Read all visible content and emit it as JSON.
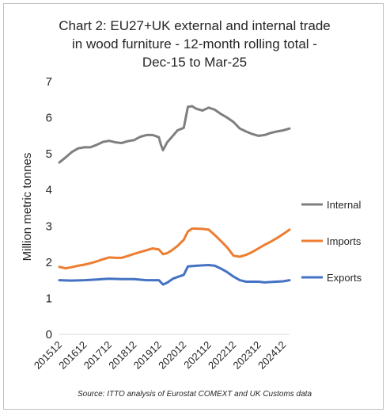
{
  "chart_data": {
    "type": "line",
    "title_lines": [
      "Chart 2: EU27+UK external and internal trade",
      "in wood furniture - 12-month rolling total  -",
      "Dec-15 to Mar-25"
    ],
    "ylabel": "Million metric tonnes",
    "xlabel": "",
    "ylim": [
      0,
      7
    ],
    "y_ticks": [
      "0",
      "1",
      "2",
      "3",
      "4",
      "5",
      "6",
      "7"
    ],
    "x_start": "2015-12",
    "x_end": "2025-03",
    "x_ticks": [
      "201512",
      "201612",
      "201712",
      "201812",
      "201912",
      "202012",
      "202112",
      "202212",
      "202312",
      "202412"
    ],
    "grid": false,
    "legend_position": "right",
    "source": "Source: ITTO analysis of Eurostat COMEXT and UK Customs data",
    "series": [
      {
        "name": "Internal",
        "color": "#7f7f7f",
        "points": [
          [
            "2015-12",
            4.76
          ],
          [
            "2016-03",
            4.9
          ],
          [
            "2016-06",
            5.05
          ],
          [
            "2016-09",
            5.15
          ],
          [
            "2016-12",
            5.18
          ],
          [
            "2017-03",
            5.18
          ],
          [
            "2017-06",
            5.25
          ],
          [
            "2017-09",
            5.33
          ],
          [
            "2017-12",
            5.36
          ],
          [
            "2018-03",
            5.32
          ],
          [
            "2018-06",
            5.3
          ],
          [
            "2018-09",
            5.35
          ],
          [
            "2018-12",
            5.38
          ],
          [
            "2019-03",
            5.47
          ],
          [
            "2019-06",
            5.52
          ],
          [
            "2019-09",
            5.52
          ],
          [
            "2019-12",
            5.46
          ],
          [
            "2020-01",
            5.25
          ],
          [
            "2020-02",
            5.1
          ],
          [
            "2020-04",
            5.32
          ],
          [
            "2020-06",
            5.45
          ],
          [
            "2020-09",
            5.65
          ],
          [
            "2020-12",
            5.72
          ],
          [
            "2021-02",
            6.3
          ],
          [
            "2021-04",
            6.32
          ],
          [
            "2021-06",
            6.25
          ],
          [
            "2021-09",
            6.2
          ],
          [
            "2021-12",
            6.28
          ],
          [
            "2022-03",
            6.22
          ],
          [
            "2022-06",
            6.1
          ],
          [
            "2022-09",
            6.0
          ],
          [
            "2022-12",
            5.88
          ],
          [
            "2023-03",
            5.7
          ],
          [
            "2023-06",
            5.62
          ],
          [
            "2023-09",
            5.55
          ],
          [
            "2023-12",
            5.5
          ],
          [
            "2024-03",
            5.52
          ],
          [
            "2024-06",
            5.58
          ],
          [
            "2024-09",
            5.62
          ],
          [
            "2024-12",
            5.65
          ],
          [
            "2025-03",
            5.7
          ]
        ]
      },
      {
        "name": "Imports",
        "color": "#ed7d31",
        "points": [
          [
            "2015-12",
            1.87
          ],
          [
            "2016-03",
            1.83
          ],
          [
            "2016-06",
            1.86
          ],
          [
            "2016-09",
            1.9
          ],
          [
            "2016-12",
            1.93
          ],
          [
            "2017-03",
            1.97
          ],
          [
            "2017-06",
            2.02
          ],
          [
            "2017-09",
            2.08
          ],
          [
            "2017-12",
            2.13
          ],
          [
            "2018-03",
            2.12
          ],
          [
            "2018-06",
            2.12
          ],
          [
            "2018-09",
            2.17
          ],
          [
            "2018-12",
            2.23
          ],
          [
            "2019-03",
            2.28
          ],
          [
            "2019-06",
            2.33
          ],
          [
            "2019-09",
            2.38
          ],
          [
            "2019-12",
            2.35
          ],
          [
            "2020-02",
            2.22
          ],
          [
            "2020-04",
            2.25
          ],
          [
            "2020-06",
            2.32
          ],
          [
            "2020-09",
            2.45
          ],
          [
            "2020-12",
            2.62
          ],
          [
            "2021-02",
            2.85
          ],
          [
            "2021-04",
            2.93
          ],
          [
            "2021-06",
            2.93
          ],
          [
            "2021-09",
            2.92
          ],
          [
            "2021-12",
            2.9
          ],
          [
            "2022-03",
            2.75
          ],
          [
            "2022-06",
            2.58
          ],
          [
            "2022-09",
            2.4
          ],
          [
            "2022-12",
            2.18
          ],
          [
            "2023-03",
            2.15
          ],
          [
            "2023-06",
            2.2
          ],
          [
            "2023-09",
            2.28
          ],
          [
            "2023-12",
            2.38
          ],
          [
            "2024-03",
            2.48
          ],
          [
            "2024-06",
            2.57
          ],
          [
            "2024-09",
            2.67
          ],
          [
            "2024-12",
            2.78
          ],
          [
            "2025-03",
            2.9
          ]
        ]
      },
      {
        "name": "Exports",
        "color": "#4472c4",
        "points": [
          [
            "2015-12",
            1.5
          ],
          [
            "2016-06",
            1.49
          ],
          [
            "2016-12",
            1.5
          ],
          [
            "2017-06",
            1.52
          ],
          [
            "2017-12",
            1.54
          ],
          [
            "2018-06",
            1.53
          ],
          [
            "2018-12",
            1.53
          ],
          [
            "2019-06",
            1.5
          ],
          [
            "2019-12",
            1.5
          ],
          [
            "2020-02",
            1.38
          ],
          [
            "2020-04",
            1.43
          ],
          [
            "2020-07",
            1.55
          ],
          [
            "2020-12",
            1.65
          ],
          [
            "2021-02",
            1.88
          ],
          [
            "2021-06",
            1.9
          ],
          [
            "2021-12",
            1.92
          ],
          [
            "2022-03",
            1.9
          ],
          [
            "2022-06",
            1.82
          ],
          [
            "2022-09",
            1.72
          ],
          [
            "2022-12",
            1.6
          ],
          [
            "2023-03",
            1.5
          ],
          [
            "2023-06",
            1.46
          ],
          [
            "2023-12",
            1.46
          ],
          [
            "2024-03",
            1.44
          ],
          [
            "2024-06",
            1.45
          ],
          [
            "2024-12",
            1.47
          ],
          [
            "2025-03",
            1.5
          ]
        ]
      }
    ]
  }
}
